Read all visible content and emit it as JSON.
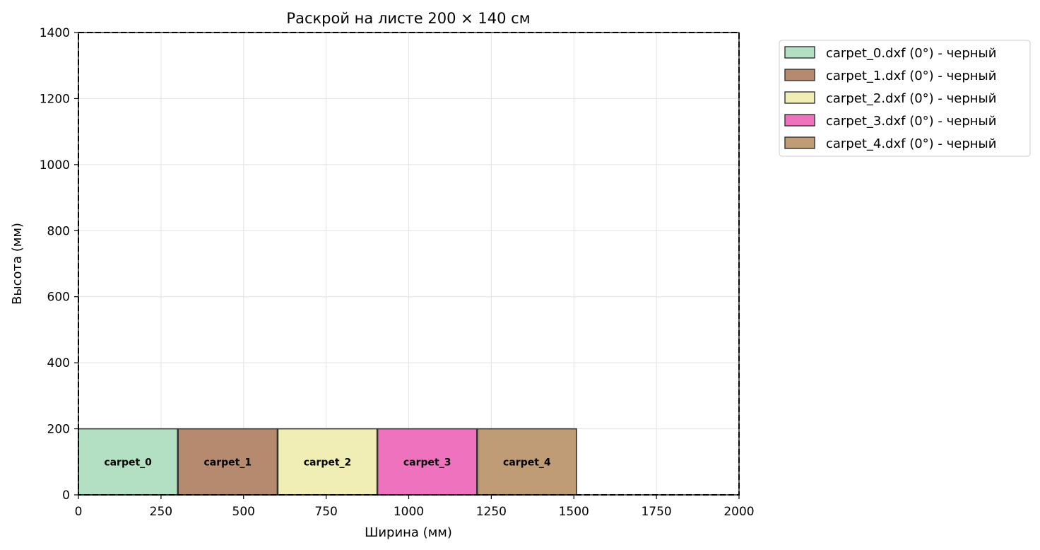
{
  "chart_data": {
    "type": "bar",
    "title": "Раскрой на листе 200 × 140 см",
    "xlabel": "Ширина (мм)",
    "ylabel": "Высота (мм)",
    "xlim": [
      0,
      2000
    ],
    "ylim": [
      0,
      1400
    ],
    "x_ticks": [
      "0",
      "250",
      "500",
      "750",
      "1000",
      "1250",
      "1500",
      "1750",
      "2000"
    ],
    "y_ticks": [
      "0",
      "200",
      "400",
      "600",
      "800",
      "1000",
      "1200",
      "1400"
    ],
    "grid": true,
    "legend_position": "outside-top-right",
    "sheet": {
      "x": 0,
      "y": 0,
      "width": 2000,
      "height": 1400
    },
    "pieces": [
      {
        "label": "carpet_0",
        "legend": "carpet_0.dxf (0°) - черный",
        "x": 0,
        "y": 0,
        "width": 300,
        "height": 200,
        "color": "#b3e0c3"
      },
      {
        "label": "carpet_1",
        "legend": "carpet_1.dxf (0°) - черный",
        "x": 302,
        "y": 0,
        "width": 300,
        "height": 200,
        "color": "#b58a6f"
      },
      {
        "label": "carpet_2",
        "legend": "carpet_2.dxf (0°) - черный",
        "x": 604,
        "y": 0,
        "width": 300,
        "height": 200,
        "color": "#f0eeb4"
      },
      {
        "label": "carpet_3",
        "legend": "carpet_3.dxf (0°) - черный",
        "x": 906,
        "y": 0,
        "width": 300,
        "height": 200,
        "color": "#ee72be"
      },
      {
        "label": "carpet_4",
        "legend": "carpet_4.dxf (0°) - черный",
        "x": 1208,
        "y": 0,
        "width": 300,
        "height": 200,
        "color": "#bf9c75"
      }
    ]
  }
}
